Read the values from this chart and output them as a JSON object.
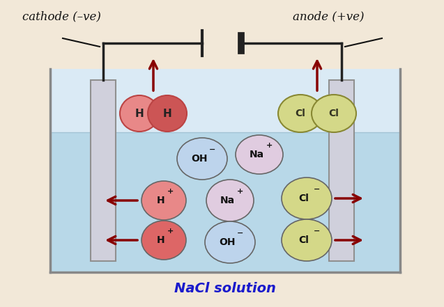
{
  "bg_color": "#f2e8d8",
  "solution_color": "#b8d8e8",
  "solution_top_color": "#daeaf5",
  "cathode_label": "cathode (–ve)",
  "anode_label": "anode (+ve)",
  "nacl_label": "NaCl solution",
  "nacl_color": "#1a1acc",
  "electrode_color": "#d0d0dc",
  "electrode_border": "#909090",
  "wire_color": "#222222",
  "arrow_color": "#880000",
  "H_ball_color1": "#e88888",
  "H_ball_color2": "#cc5555",
  "H_ball_color3": "#dd6666",
  "Cl_ball_color": "#d4d888",
  "Na_ball_color": "#e0cce0",
  "OH_ball_color": "#bdd4ec",
  "text_color": "#111111",
  "tank_border": "#888888",
  "tank_fill": "#c5dcea"
}
